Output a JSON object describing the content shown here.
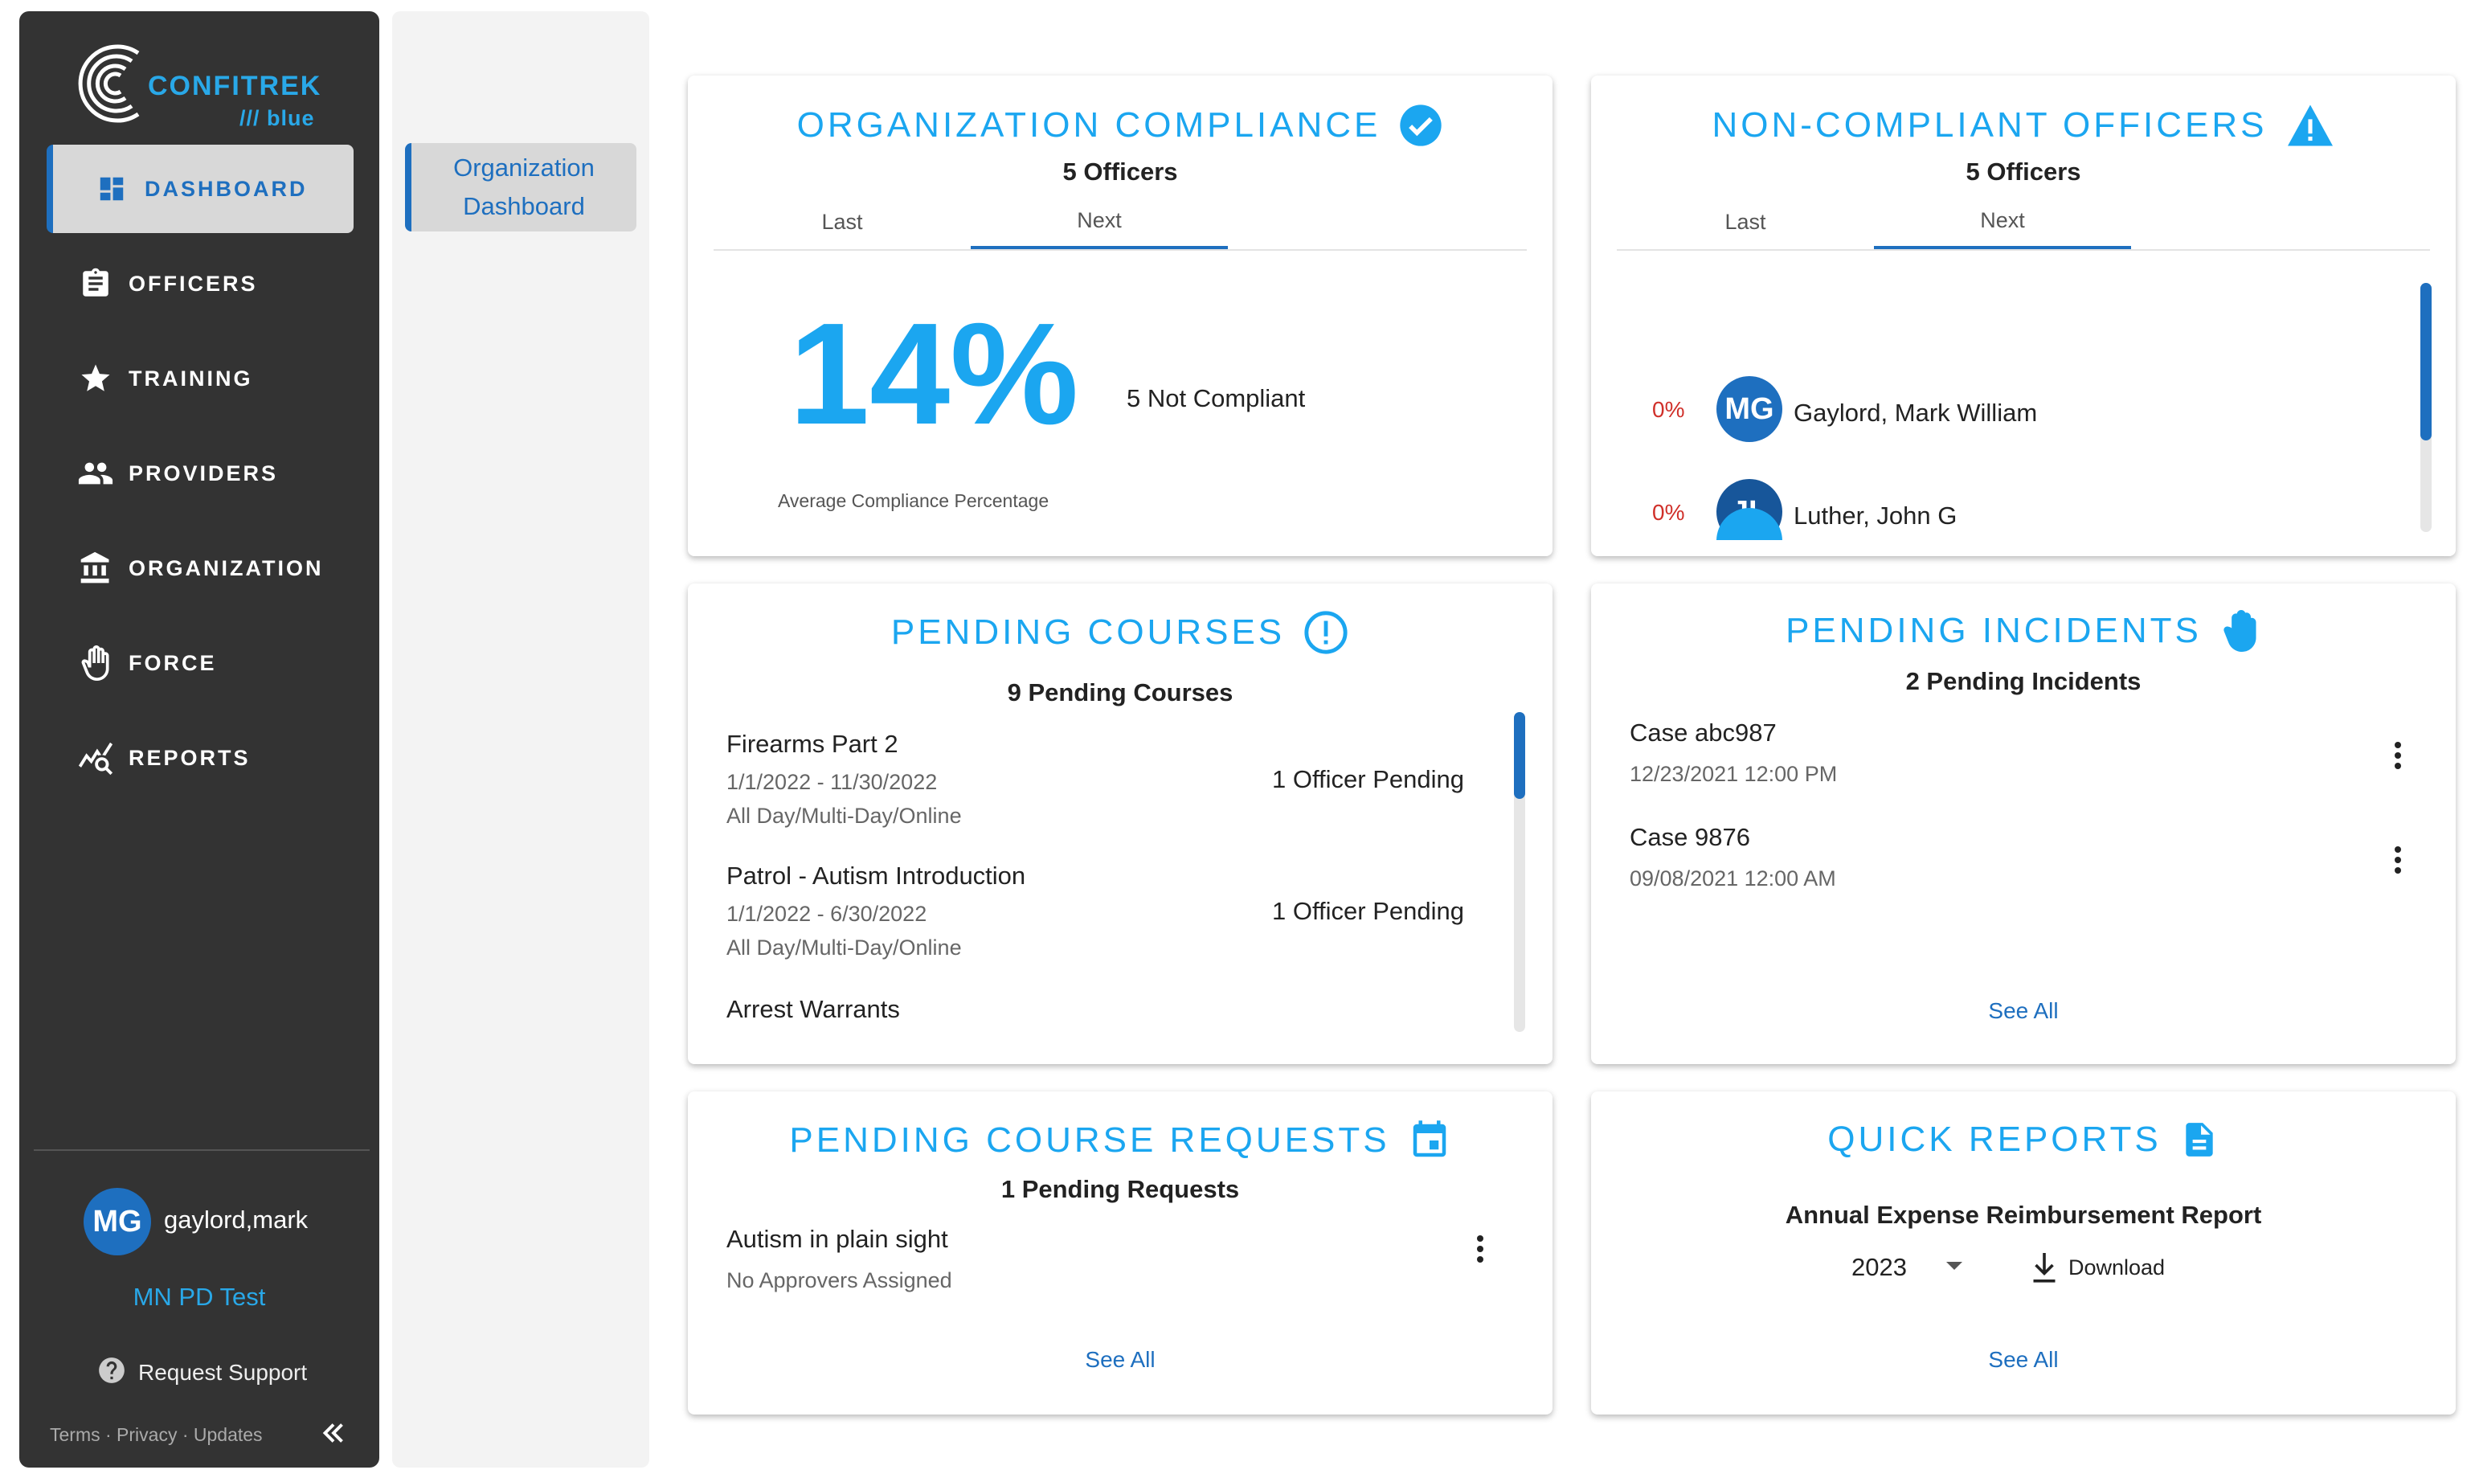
{
  "brand": {
    "name": "CONFITREK",
    "sub": "/// blue"
  },
  "sidebar": {
    "items": [
      {
        "label": "DASHBOARD",
        "icon": "dashboard-icon",
        "active": true
      },
      {
        "label": "OFFICERS",
        "icon": "clipboard-icon",
        "active": false
      },
      {
        "label": "TRAINING",
        "icon": "star-icon",
        "active": false
      },
      {
        "label": "PROVIDERS",
        "icon": "people-icon",
        "active": false
      },
      {
        "label": "ORGANIZATION",
        "icon": "institution-icon",
        "active": false
      },
      {
        "label": "FORCE",
        "icon": "hand-icon",
        "active": false
      },
      {
        "label": "REPORTS",
        "icon": "chart-icon",
        "active": false
      }
    ],
    "user": {
      "initials": "MG",
      "name": "gaylord,mark"
    },
    "org": "MN PD Test",
    "support": "Request Support",
    "footer": "Terms · Privacy · Updates"
  },
  "subnav": {
    "item": "Organization Dashboard"
  },
  "compliance": {
    "title": "ORGANIZATION COMPLIANCE",
    "subtitle": "5 Officers",
    "tabs": [
      "Last",
      "Next"
    ],
    "active_tab": "Next",
    "percent": "14%",
    "percent_label": "Average Compliance Percentage",
    "not_compliant": "5 Not Compliant"
  },
  "noncompliant": {
    "title": "NON-COMPLIANT OFFICERS",
    "subtitle": "5 Officers",
    "tabs": [
      "Last",
      "Next"
    ],
    "active_tab": "Next",
    "officers": [
      {
        "pct": "0%",
        "initials": "MG",
        "name": "Gaylord, Mark William",
        "color": "#1e6fbf"
      },
      {
        "pct": "0%",
        "initials": "JL",
        "name": "Luther, John G",
        "color": "#17569a"
      }
    ]
  },
  "courses": {
    "title": "PENDING COURSES",
    "subtitle": "9 Pending Courses",
    "items": [
      {
        "name": "Firearms Part 2",
        "dates": "1/1/2022 - 11/30/2022",
        "type": "All Day/Multi-Day/Online",
        "pending": "1 Officer Pending"
      },
      {
        "name": "Patrol - Autism Introduction",
        "dates": "1/1/2022 - 6/30/2022",
        "type": "All Day/Multi-Day/Online",
        "pending": "1 Officer Pending"
      },
      {
        "name": "Arrest Warrants"
      }
    ]
  },
  "incidents": {
    "title": "PENDING INCIDENTS",
    "subtitle": "2 Pending Incidents",
    "items": [
      {
        "name": "Case abc987",
        "date": "12/23/2021 12:00 PM"
      },
      {
        "name": "Case 9876",
        "date": "09/08/2021 12:00 AM"
      }
    ],
    "see_all": "See All"
  },
  "requests": {
    "title": "PENDING COURSE REQUESTS",
    "subtitle": "1 Pending Requests",
    "items": [
      {
        "name": "Autism in plain sight",
        "note": "No Approvers Assigned"
      }
    ],
    "see_all": "See All"
  },
  "reports": {
    "title": "QUICK REPORTS",
    "report_name": "Annual Expense Reimbursement Report",
    "year": "2023",
    "download": "Download",
    "see_all": "See All"
  },
  "colors": {
    "accent": "#1ba6f0",
    "primary": "#1e6fbf",
    "sidebar": "#333333",
    "danger": "#d0302a"
  }
}
